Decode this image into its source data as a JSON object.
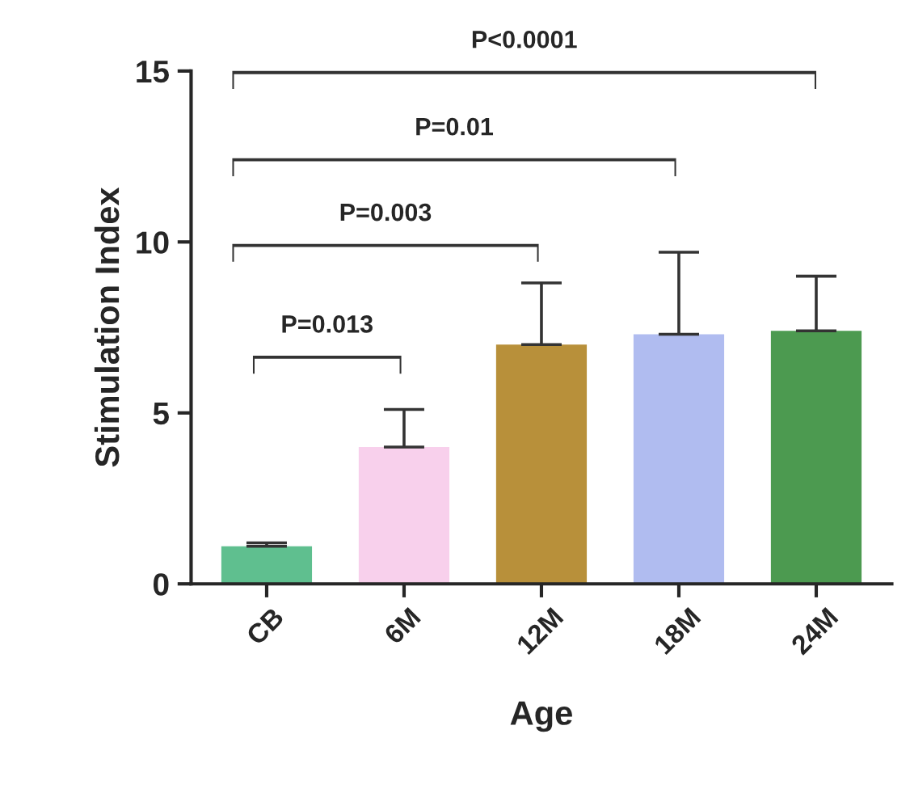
{
  "chart_data": {
    "type": "bar",
    "xlabel": "Age",
    "ylabel": "Stimulation Index",
    "categories": [
      "CB",
      "6M",
      "12M",
      "18M",
      "24M"
    ],
    "values": [
      1.1,
      4.0,
      7.0,
      7.3,
      7.4
    ],
    "errors": [
      [
        1.1,
        1.2
      ],
      [
        4.0,
        5.1
      ],
      [
        7.0,
        8.8
      ],
      [
        7.3,
        9.7
      ],
      [
        7.4,
        9.0
      ]
    ],
    "colors": [
      "#5fbf8f",
      "#f8d0ec",
      "#b8903a",
      "#b0bcf0",
      "#4c9a50"
    ],
    "ylim": [
      0,
      15
    ],
    "yticks": [
      0,
      5,
      10,
      15
    ],
    "grid": false,
    "legend": false,
    "annotations": [
      "P=0.013",
      "P=0.003",
      "P=0.01",
      "P<0.0001"
    ]
  }
}
